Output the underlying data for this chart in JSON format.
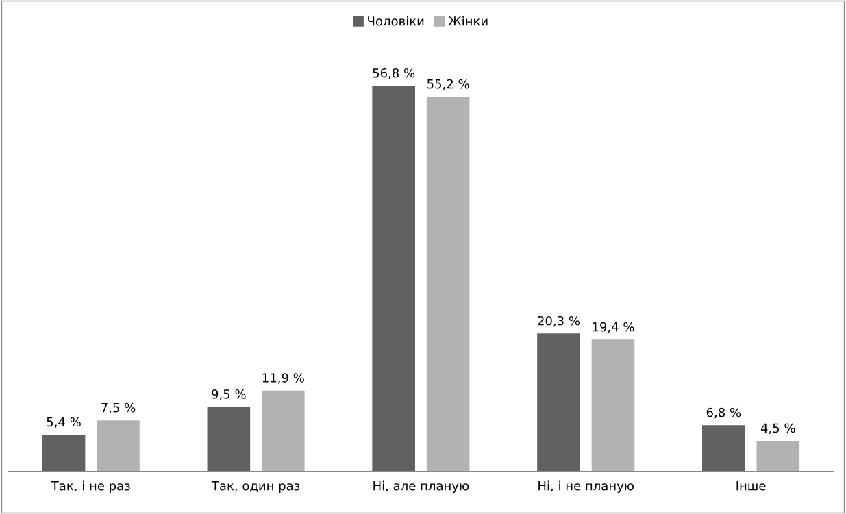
{
  "chart_data": {
    "type": "bar",
    "categories": [
      "Так, і не раз",
      "Так, один раз",
      "Ні, але планую",
      "Ні, і не планую",
      "Інше"
    ],
    "series": [
      {
        "name": "Чоловіки",
        "color": "#616161",
        "values": [
          5.4,
          9.5,
          56.8,
          20.3,
          6.8
        ],
        "value_labels": [
          "5,4 %",
          "9,5 %",
          "56,8 %",
          "20,3 %",
          "6,8 %"
        ]
      },
      {
        "name": "Жінки",
        "color": "#b2b2b2",
        "values": [
          7.5,
          11.9,
          55.2,
          19.4,
          4.5
        ],
        "value_labels": [
          "7,5 %",
          "11,9 %",
          "55,2 %",
          "19,4 %",
          "4,5 %"
        ]
      }
    ],
    "legend": "top",
    "grid": false
  }
}
